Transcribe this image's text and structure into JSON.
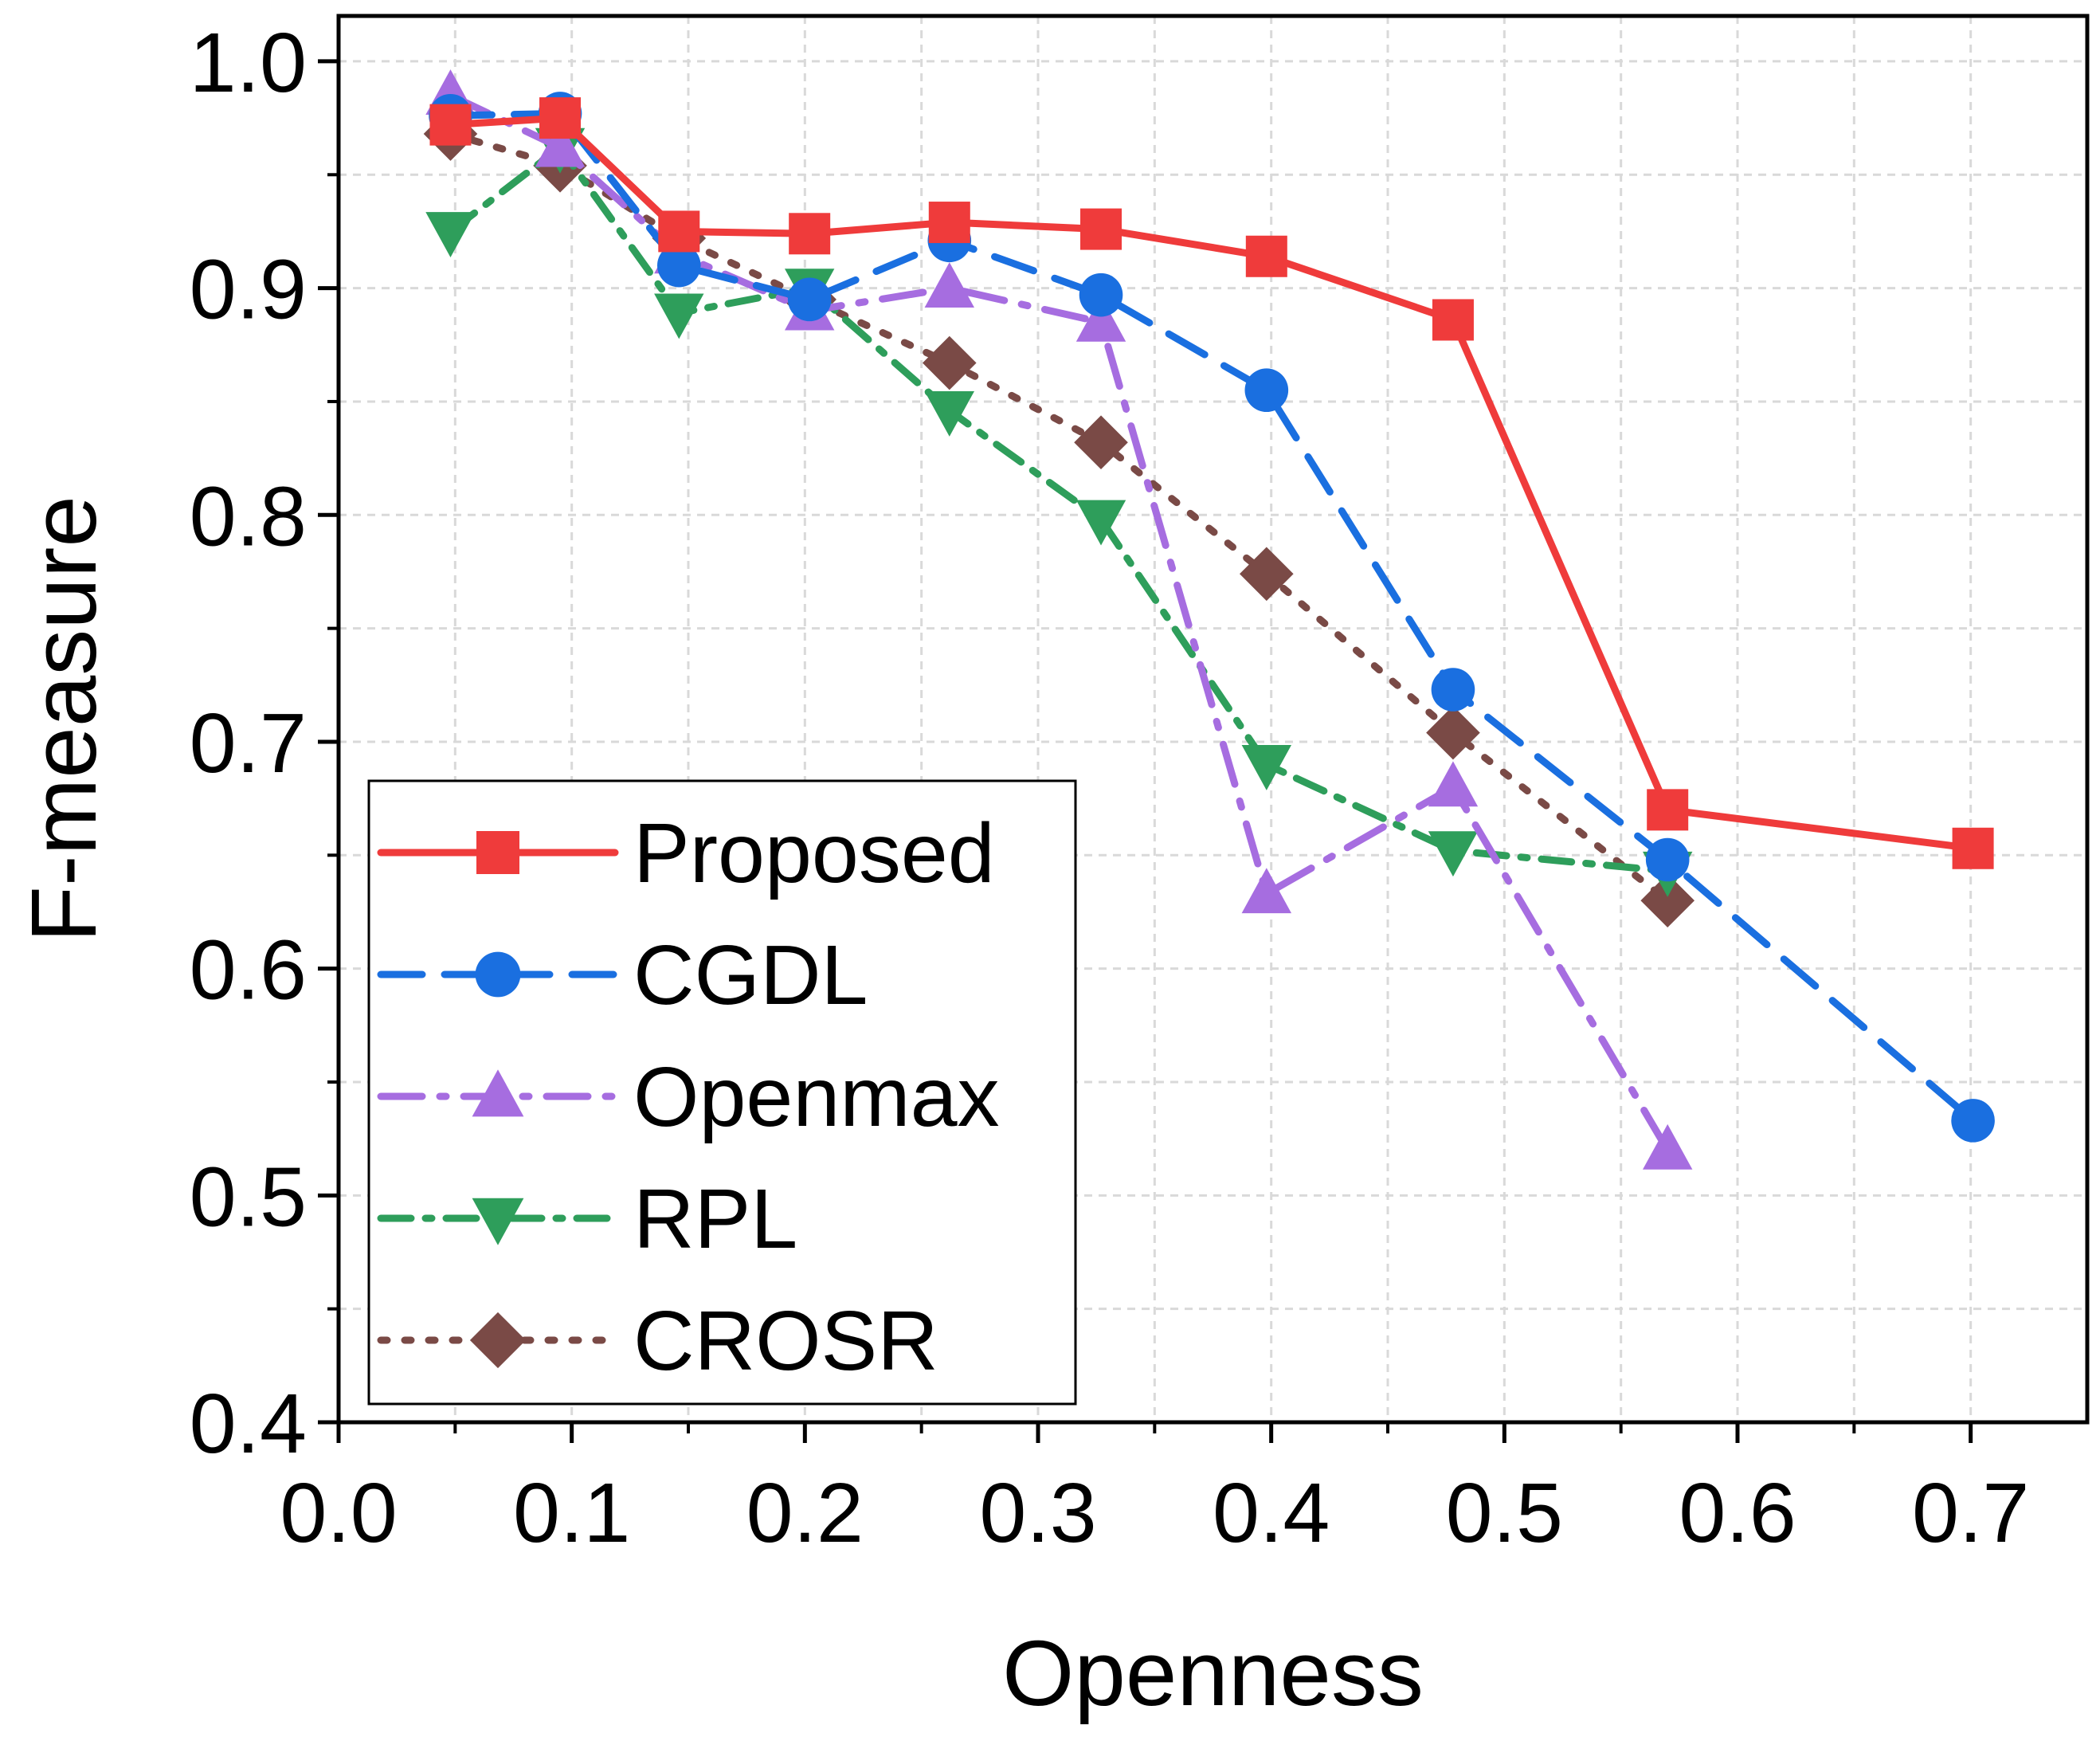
{
  "chart_data": {
    "type": "line",
    "title": "",
    "xlabel": "Openness",
    "ylabel": "F-measure",
    "xlim": [
      0.0,
      0.75
    ],
    "ylim": [
      0.4,
      1.02
    ],
    "xticks": [
      "0.0",
      "0.1",
      "0.2",
      "0.3",
      "0.4",
      "0.5",
      "0.6",
      "0.7"
    ],
    "yticks": [
      "0.4",
      "0.5",
      "0.6",
      "0.7",
      "0.8",
      "0.9",
      "1.0"
    ],
    "grid": true,
    "legend_position": "bottom-left",
    "series": [
      {
        "name": "Proposed",
        "color": "#ef3b3b",
        "dash": "solid",
        "marker": "square",
        "x": [
          0.048,
          0.095,
          0.146,
          0.202,
          0.262,
          0.327,
          0.398,
          0.478,
          0.57,
          0.701
        ],
        "y": [
          0.972,
          0.975,
          0.925,
          0.924,
          0.929,
          0.926,
          0.914,
          0.886,
          0.67,
          0.653
        ]
      },
      {
        "name": "CGDL",
        "color": "#1a6fe0",
        "dash": "dash",
        "marker": "circle",
        "x": [
          0.048,
          0.095,
          0.146,
          0.202,
          0.262,
          0.327,
          0.398,
          0.478,
          0.57,
          0.701
        ],
        "y": [
          0.976,
          0.977,
          0.91,
          0.895,
          0.921,
          0.897,
          0.855,
          0.723,
          0.648,
          0.533
        ]
      },
      {
        "name": "Openmax",
        "color": "#a66de0",
        "dash": "dashdot",
        "marker": "triangle-up",
        "x": [
          0.048,
          0.095,
          0.146,
          0.202,
          0.262,
          0.327,
          0.398,
          0.478,
          0.57
        ],
        "y": [
          0.985,
          0.962,
          0.915,
          0.89,
          0.9,
          0.885,
          0.633,
          0.68,
          0.52
        ]
      },
      {
        "name": "RPL",
        "color": "#2e9e5b",
        "dash": "dashdot-dense",
        "marker": "triangle-down",
        "x": [
          0.048,
          0.095,
          0.146,
          0.202,
          0.262,
          0.327,
          0.398,
          0.478,
          0.57
        ],
        "y": [
          0.925,
          0.962,
          0.889,
          0.9,
          0.846,
          0.798,
          0.69,
          0.652,
          0.643
        ]
      },
      {
        "name": "CROSR",
        "color": "#7a4a46",
        "dash": "dot",
        "marker": "diamond",
        "x": [
          0.048,
          0.095,
          0.146,
          0.202,
          0.262,
          0.327,
          0.398,
          0.478,
          0.57
        ],
        "y": [
          0.968,
          0.954,
          0.922,
          0.895,
          0.867,
          0.832,
          0.774,
          0.704,
          0.63
        ]
      }
    ]
  }
}
